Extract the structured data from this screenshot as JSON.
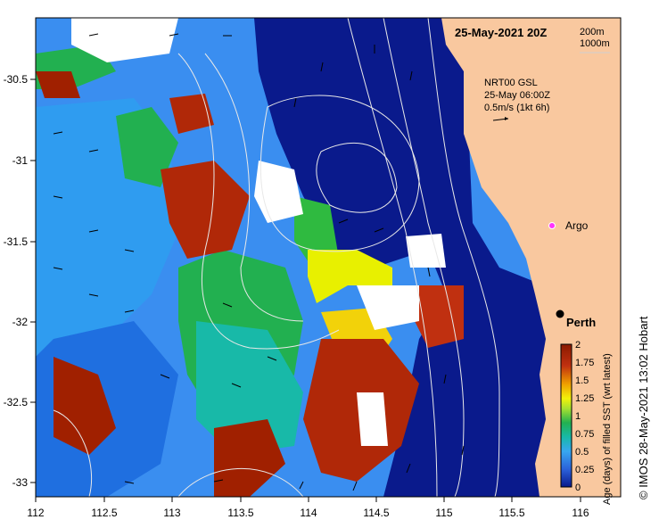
{
  "map": {
    "title": "25-May-2021 20Z",
    "depth_legend": [
      "200m",
      "1000m"
    ],
    "current_info": [
      "NRT00 GSL",
      "25-May 06:00Z",
      "0.5m/s (1kt 6h)"
    ],
    "argo_label": "Argo",
    "city_label": "Perth",
    "credit": "© IMOS 28-May-2021 13:02 Hobart",
    "lon_ticks": [
      "112",
      "112.5",
      "113",
      "113.5",
      "114",
      "114.5",
      "115",
      "115.5",
      "116"
    ],
    "lat_ticks": [
      "-30.5",
      "-31",
      "-31.5",
      "-32",
      "-32.5",
      "-33"
    ],
    "colors": {
      "land": "#f9c89f",
      "deep": "#0a1a8c",
      "ocean_mid": "#3a8ef0"
    }
  },
  "colorbar": {
    "label": "Age (days) of filled SST (wrt latest)",
    "ticks": [
      "2",
      "1.75",
      "1.5",
      "1.25",
      "1",
      "0.75",
      "0.5",
      "0.25",
      "0"
    ],
    "colors": [
      "#0a1a8c",
      "#2a5fd8",
      "#38a7f0",
      "#18b9a8",
      "#22b050",
      "#a7e030",
      "#f2f20a",
      "#f0a000",
      "#c03010",
      "#8b1a00"
    ]
  }
}
